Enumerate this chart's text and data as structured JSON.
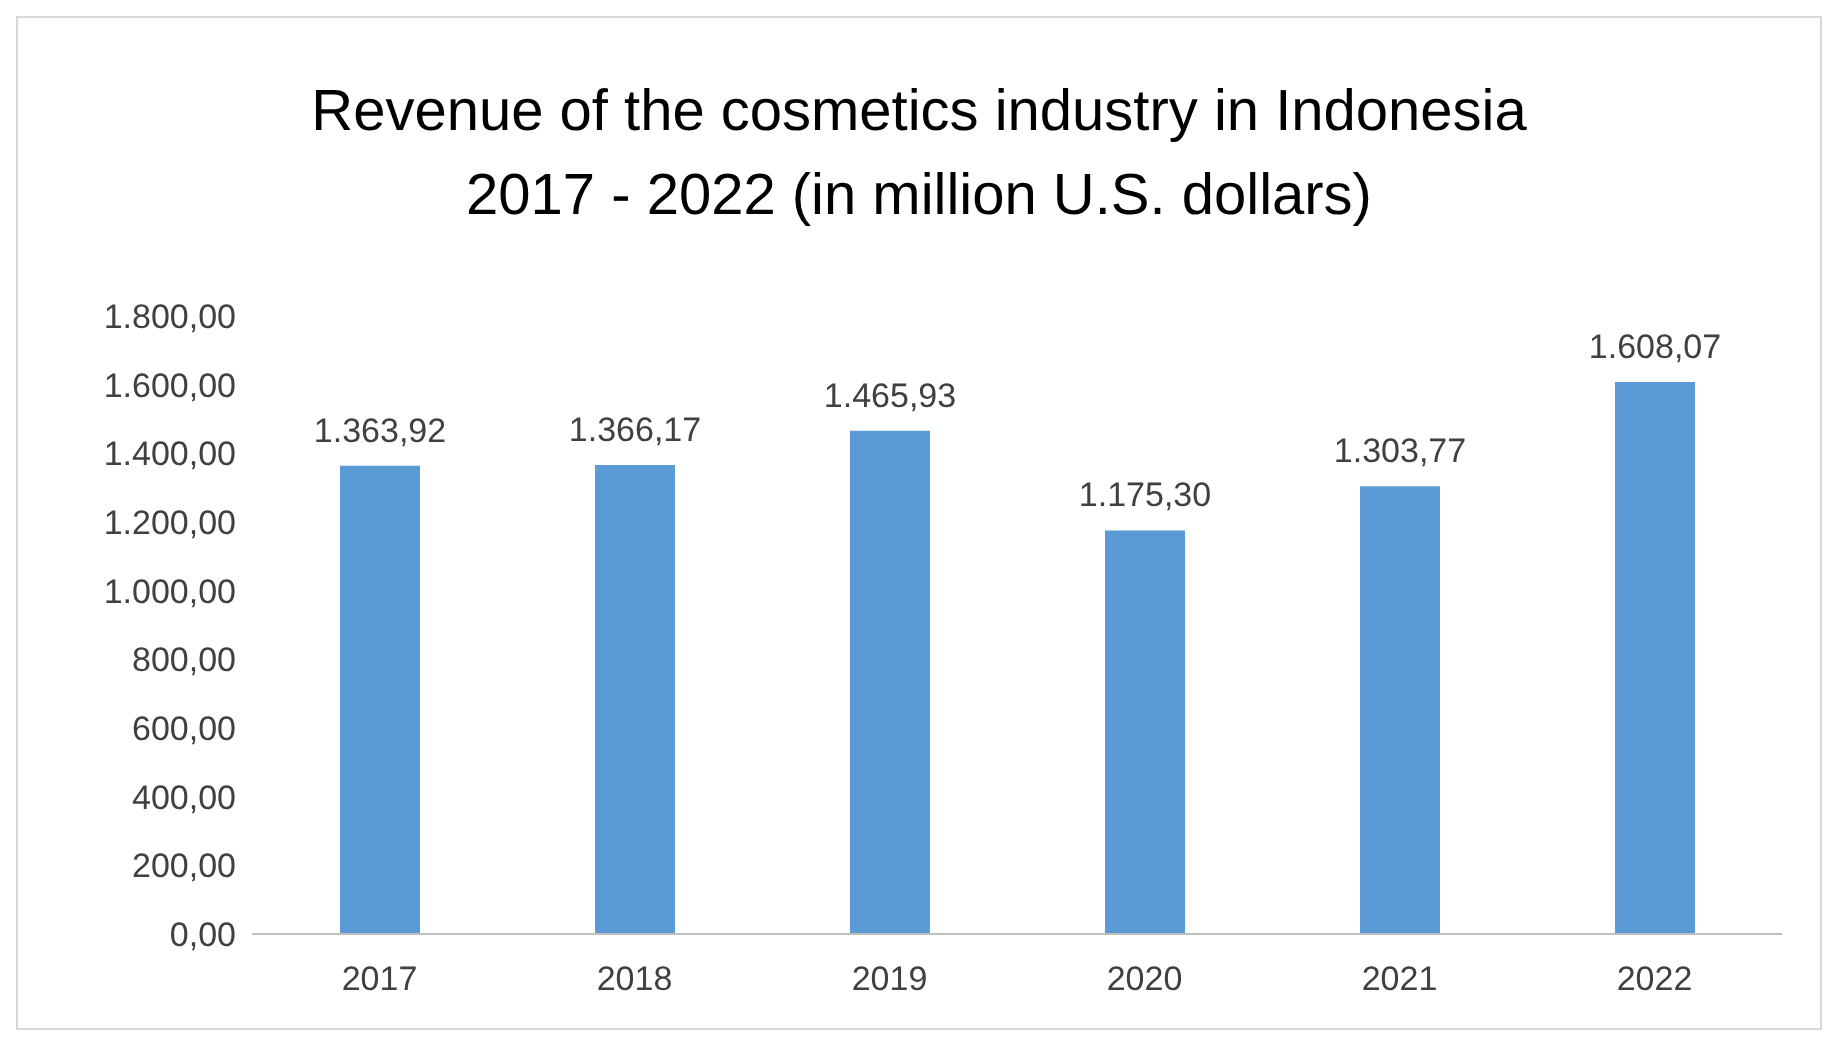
{
  "chart_data": {
    "type": "bar",
    "title": "Revenue of the cosmetics industry in Indonesia 2017 - 2022 (in million U.S. dollars)",
    "categories": [
      "2017",
      "2018",
      "2019",
      "2020",
      "2021",
      "2022"
    ],
    "values": [
      1363.92,
      1366.17,
      1465.93,
      1175.3,
      1303.77,
      1608.07
    ],
    "value_labels": [
      "1.363,92",
      "1.366,17",
      "1.465,93",
      "1.175,30",
      "1.303,77",
      "1.608,07"
    ],
    "color": "#5b9bd5",
    "ylim": [
      0,
      1800
    ],
    "yticks": [
      {
        "value": 0,
        "label": "0,00"
      },
      {
        "value": 200,
        "label": "200,00"
      },
      {
        "value": 400,
        "label": "400,00"
      },
      {
        "value": 600,
        "label": "600,00"
      },
      {
        "value": 800,
        "label": "800,00"
      },
      {
        "value": 1000,
        "label": "1.000,00"
      },
      {
        "value": 1200,
        "label": "1.200,00"
      },
      {
        "value": 1400,
        "label": "1.400,00"
      },
      {
        "value": 1600,
        "label": "1.600,00"
      },
      {
        "value": 1800,
        "label": "1.800,00"
      }
    ],
    "grid": false,
    "legend": false
  }
}
